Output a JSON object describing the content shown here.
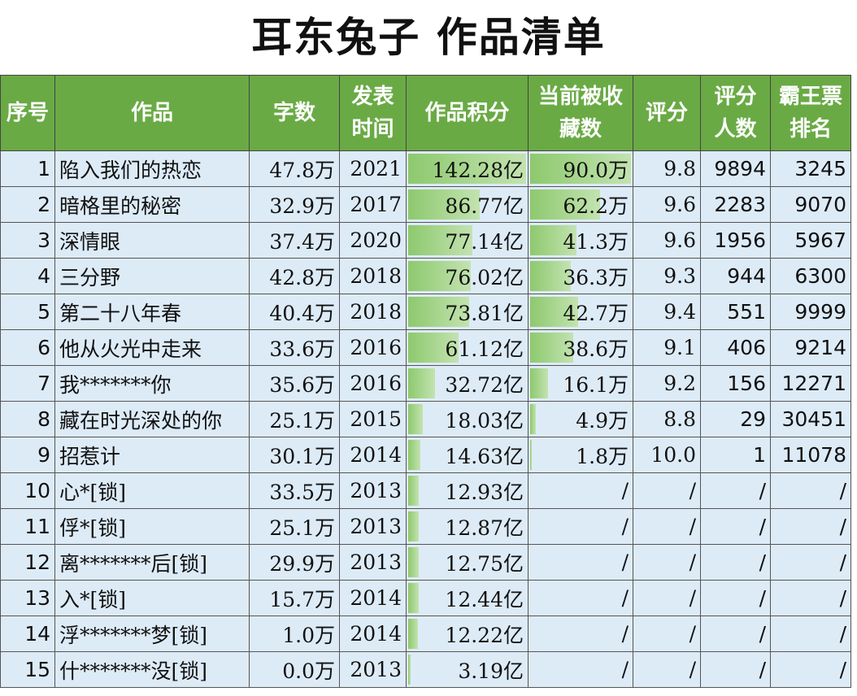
{
  "title": "耳东兔子 作品清单",
  "table": {
    "header": [
      "序号",
      "作品",
      "字数",
      "发表时间",
      "作品积分",
      "当前被收藏数",
      "评分",
      "评分人数",
      "霸王票排名"
    ],
    "rows": [
      [
        "1",
        "陷入我们的热恋",
        "47.8万",
        "2021",
        "142.28亿",
        "90.0万",
        "9.8",
        "9894",
        "3245"
      ],
      [
        "2",
        "暗格里的秘密",
        "32.9万",
        "2017",
        "86.77亿",
        "62.2万",
        "9.6",
        "2283",
        "9070"
      ],
      [
        "3",
        "深情眼",
        "37.4万",
        "2020",
        "77.14亿",
        "41.3万",
        "9.6",
        "1956",
        "5967"
      ],
      [
        "4",
        "三分野",
        "42.8万",
        "2018",
        "76.02亿",
        "36.3万",
        "9.3",
        "944",
        "6300"
      ],
      [
        "5",
        "第二十八年春",
        "40.4万",
        "2018",
        "73.81亿",
        "42.7万",
        "9.4",
        "551",
        "9999"
      ],
      [
        "6",
        "他从火光中走来",
        "33.6万",
        "2016",
        "61.12亿",
        "38.6万",
        "9.1",
        "406",
        "9214"
      ],
      [
        "7",
        "我*******你",
        "35.6万",
        "2016",
        "32.72亿",
        "16.1万",
        "9.2",
        "156",
        "12271"
      ],
      [
        "8",
        "藏在时光深处的你",
        "25.1万",
        "2015",
        "18.03亿",
        "4.9万",
        "8.8",
        "29",
        "30451"
      ],
      [
        "9",
        "招惹计",
        "30.1万",
        "2014",
        "14.63亿",
        "1.8万",
        "10.0",
        "1",
        "11078"
      ],
      [
        "10",
        "心*[锁]",
        "33.5万",
        "2013",
        "12.93亿",
        "/",
        "/",
        "/",
        "/"
      ],
      [
        "11",
        "俘*[锁]",
        "25.1万",
        "2013",
        "12.87亿",
        "/",
        "/",
        "/",
        "/"
      ],
      [
        "12",
        "离*******后[锁]",
        "29.9万",
        "2013",
        "12.75亿",
        "/",
        "/",
        "/",
        "/"
      ],
      [
        "13",
        "入*[锁]",
        "15.7万",
        "2014",
        "12.44亿",
        "/",
        "/",
        "/",
        "/"
      ],
      [
        "14",
        "浮*******梦[锁]",
        "1.0万",
        "2014",
        "12.22亿",
        "/",
        "/",
        "/",
        "/"
      ],
      [
        "15",
        "什*******没[锁]",
        "0.0万",
        "2013",
        "3.19亿",
        "/",
        "/",
        "/",
        "/"
      ]
    ]
  }
}
